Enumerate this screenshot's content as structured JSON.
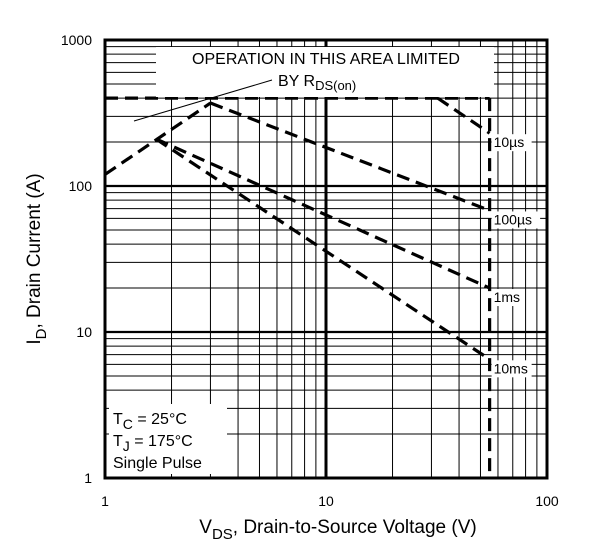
{
  "chart_data": {
    "type": "line",
    "scale": {
      "x": "log",
      "y": "log"
    },
    "xlim": [
      1,
      100
    ],
    "ylim": [
      1,
      1000
    ],
    "grid": true,
    "x_ticks": [
      "1",
      "10",
      "100"
    ],
    "y_ticks": [
      "1",
      "10",
      "100",
      "1000"
    ],
    "xlabel": {
      "main": "V",
      "sub": "DS",
      "rest": ", Drain-to-Source Voltage (V)"
    },
    "ylabel": {
      "main": "I",
      "sub": "D",
      "rest": ", Drain Current (A)"
    },
    "region_label": {
      "line1": "OPERATION IN THIS AREA LIMITED",
      "line2": "BY R",
      "line2_sub": "DS(on)"
    },
    "conditions": [
      {
        "main": "T",
        "sub": "C",
        "rest": " = 25°C"
      },
      {
        "main": "T",
        "sub": "J",
        "rest": " = 175°C"
      },
      {
        "main": "Single Pulse",
        "sub": "",
        "rest": ""
      }
    ],
    "limits": {
      "rds_on": {
        "x": [
          1,
          3
        ],
        "y": [
          120,
          370
        ]
      },
      "current_limit": 400,
      "vds_max": 55
    },
    "series": [
      {
        "name": "10µs",
        "x": [
          32,
          55
        ],
        "y": [
          400,
          230
        ]
      },
      {
        "name": "100µs",
        "x": [
          3,
          55
        ],
        "y": [
          370,
          68
        ]
      },
      {
        "name": "1ms",
        "x": [
          1.7,
          55
        ],
        "y": [
          210,
          20
        ]
      },
      {
        "name": "10ms",
        "x": [
          1.7,
          55
        ],
        "y": [
          210,
          6.5
        ]
      }
    ]
  }
}
